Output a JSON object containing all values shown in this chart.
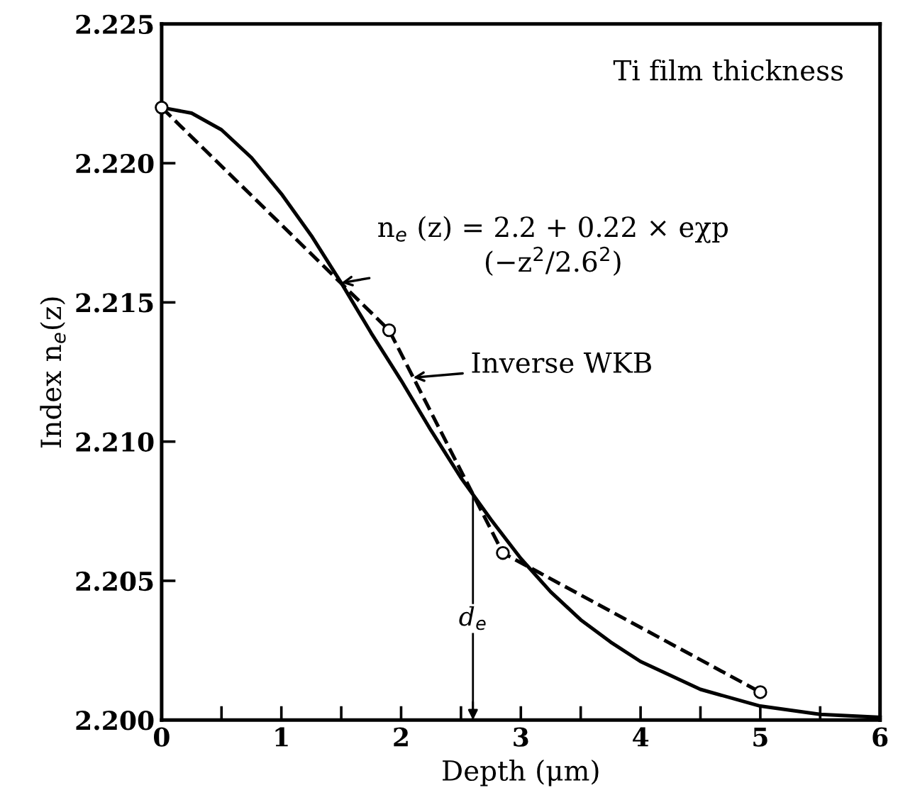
{
  "chart_data": {
    "type": "line",
    "xlabel": "Depth (μm)",
    "ylabel": "Index n$_{e}$(z)",
    "series": [
      {
        "color": "#000000",
        "line_style": "solid",
        "marker": "none",
        "x": [
          0,
          0.25,
          0.5,
          0.75,
          1,
          1.25,
          1.5,
          1.75,
          2,
          2.25,
          2.5,
          2.75,
          3,
          3.25,
          3.5,
          3.75,
          4,
          4.5,
          5,
          5.5,
          6
        ],
        "values": [
          2.222,
          2.2218,
          2.2212,
          2.2202,
          2.2189,
          2.2174,
          2.2157,
          2.2139,
          2.2122,
          2.2104,
          2.2087,
          2.2072,
          2.2058,
          2.2046,
          2.2036,
          2.2028,
          2.2021,
          2.2011,
          2.2005,
          2.2002,
          2.2001
        ]
      },
      {
        "color": "#000000",
        "line_style": "dashed",
        "marker": "circle",
        "x": [
          0,
          1.9,
          2.85,
          5
        ],
        "values": [
          2.222,
          2.214,
          2.206,
          2.201
        ]
      }
    ],
    "xlim": [
      0,
      6
    ],
    "ylim": [
      2.2,
      2.225
    ],
    "xticks": [
      0,
      {
        "value": 0.5,
        "label": null
      },
      1,
      {
        "value": 1.5,
        "label": null
      },
      2,
      {
        "value": 2.5,
        "label": null
      },
      3,
      {
        "value": 3.5,
        "label": null
      },
      4,
      {
        "value": 4.5,
        "label": null
      },
      5,
      {
        "value": 5.5,
        "label": null
      },
      6
    ],
    "yticks": [
      {
        "value": 2.2,
        "label": "2.200"
      },
      {
        "value": 2.205,
        "label": "2.205"
      },
      {
        "value": 2.21,
        "label": "2.210"
      },
      {
        "value": 2.215,
        "label": "2.215"
      },
      {
        "value": 2.22,
        "label": "2.220"
      },
      {
        "value": 2.225,
        "label": "2.225"
      }
    ],
    "grid": false,
    "legend": false,
    "annotations": [
      "Ti film thickness",
      {
        "text": "n$_{e}$ (z) = 2.2 + 0.22 × eχp\n(−z$^{2}$/2.6$^{2}$)",
        "x": 1.5,
        "y": 2.2157
      },
      {
        "text": "Inverse WKB",
        "x": 2.1,
        "y": 2.2123
      }
    ],
    "ref_lines": [
      {
        "axis": "x",
        "value": 2.6,
        "label": "d$_{e}$"
      }
    ]
  }
}
